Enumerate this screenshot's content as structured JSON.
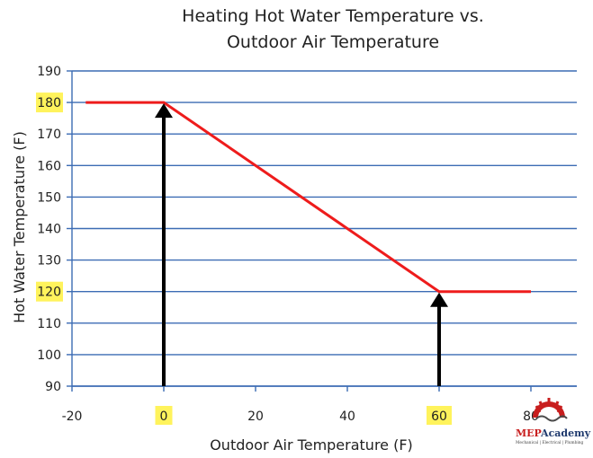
{
  "chart_data": {
    "type": "line",
    "title": [
      "Heating Hot Water Temperature vs.",
      "Outdoor Air Temperature"
    ],
    "xlabel": "Outdoor Air Temperature (F)",
    "ylabel": "Hot Water Temperature (F)",
    "xlim": [
      -20,
      90
    ],
    "ylim": [
      90,
      190
    ],
    "x_ticks": [
      -20,
      0,
      20,
      40,
      60,
      80
    ],
    "y_ticks": [
      90,
      100,
      110,
      120,
      130,
      140,
      150,
      160,
      170,
      180,
      190
    ],
    "highlighted_x_ticks": [
      0,
      60
    ],
    "highlighted_y_ticks": [
      120,
      180
    ],
    "grid": "horizontal",
    "series": [
      {
        "x": [
          -17,
          0,
          60,
          80
        ],
        "y": [
          180,
          180,
          120,
          120
        ],
        "color": "#ee1c1c"
      }
    ],
    "annotations": [
      {
        "type": "arrow",
        "x": 0,
        "from_y": 90,
        "to_y": 180,
        "color": "#000000"
      },
      {
        "type": "arrow",
        "x": 60,
        "from_y": 90,
        "to_y": 120,
        "color": "#000000"
      }
    ]
  },
  "colors": {
    "grid": "#3c6cb4",
    "line": "#ee1c1c",
    "highlight": "#fff35c",
    "arrow": "#000000"
  },
  "logo": {
    "text_mep": "MEP",
    "text_academy": "Academy",
    "tagline": "Mechanical | Electrical | Plumbing"
  }
}
